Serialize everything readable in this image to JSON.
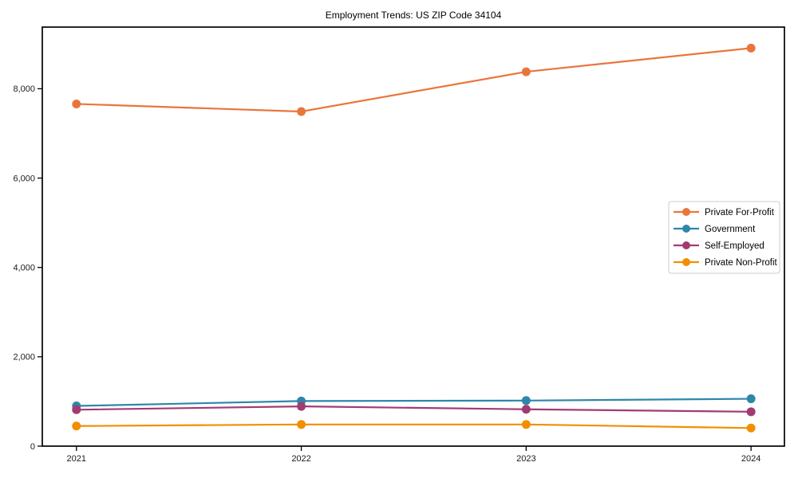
{
  "chart_data": {
    "type": "line",
    "title": "Employment Trends: US ZIP Code 34104",
    "xlabel": "",
    "ylabel": "",
    "x": [
      "2021",
      "2022",
      "2023",
      "2024"
    ],
    "series": [
      {
        "name": "Private For-Profit",
        "color": "#E8763B",
        "values": [
          7660,
          7490,
          8380,
          8910
        ]
      },
      {
        "name": "Government",
        "color": "#2E86AB",
        "values": [
          900,
          1010,
          1020,
          1060
        ]
      },
      {
        "name": "Self-Employed",
        "color": "#A23B72",
        "values": [
          815,
          890,
          825,
          770
        ]
      },
      {
        "name": "Private Non-Profit",
        "color": "#F18F01",
        "values": [
          450,
          485,
          485,
          405
        ]
      }
    ],
    "ylim": [
      0,
      9380
    ],
    "yticks": [
      0,
      2000,
      4000,
      6000,
      8000
    ],
    "ytick_labels": [
      "0",
      "2,000",
      "4,000",
      "6,000",
      "8,000"
    ],
    "grid": false,
    "legend_position": "center right",
    "frame_color": "#000000",
    "tick_label_color": "#1a1a1a",
    "legend_border_color": "#cccccc",
    "legend_background": "#ffffff"
  }
}
